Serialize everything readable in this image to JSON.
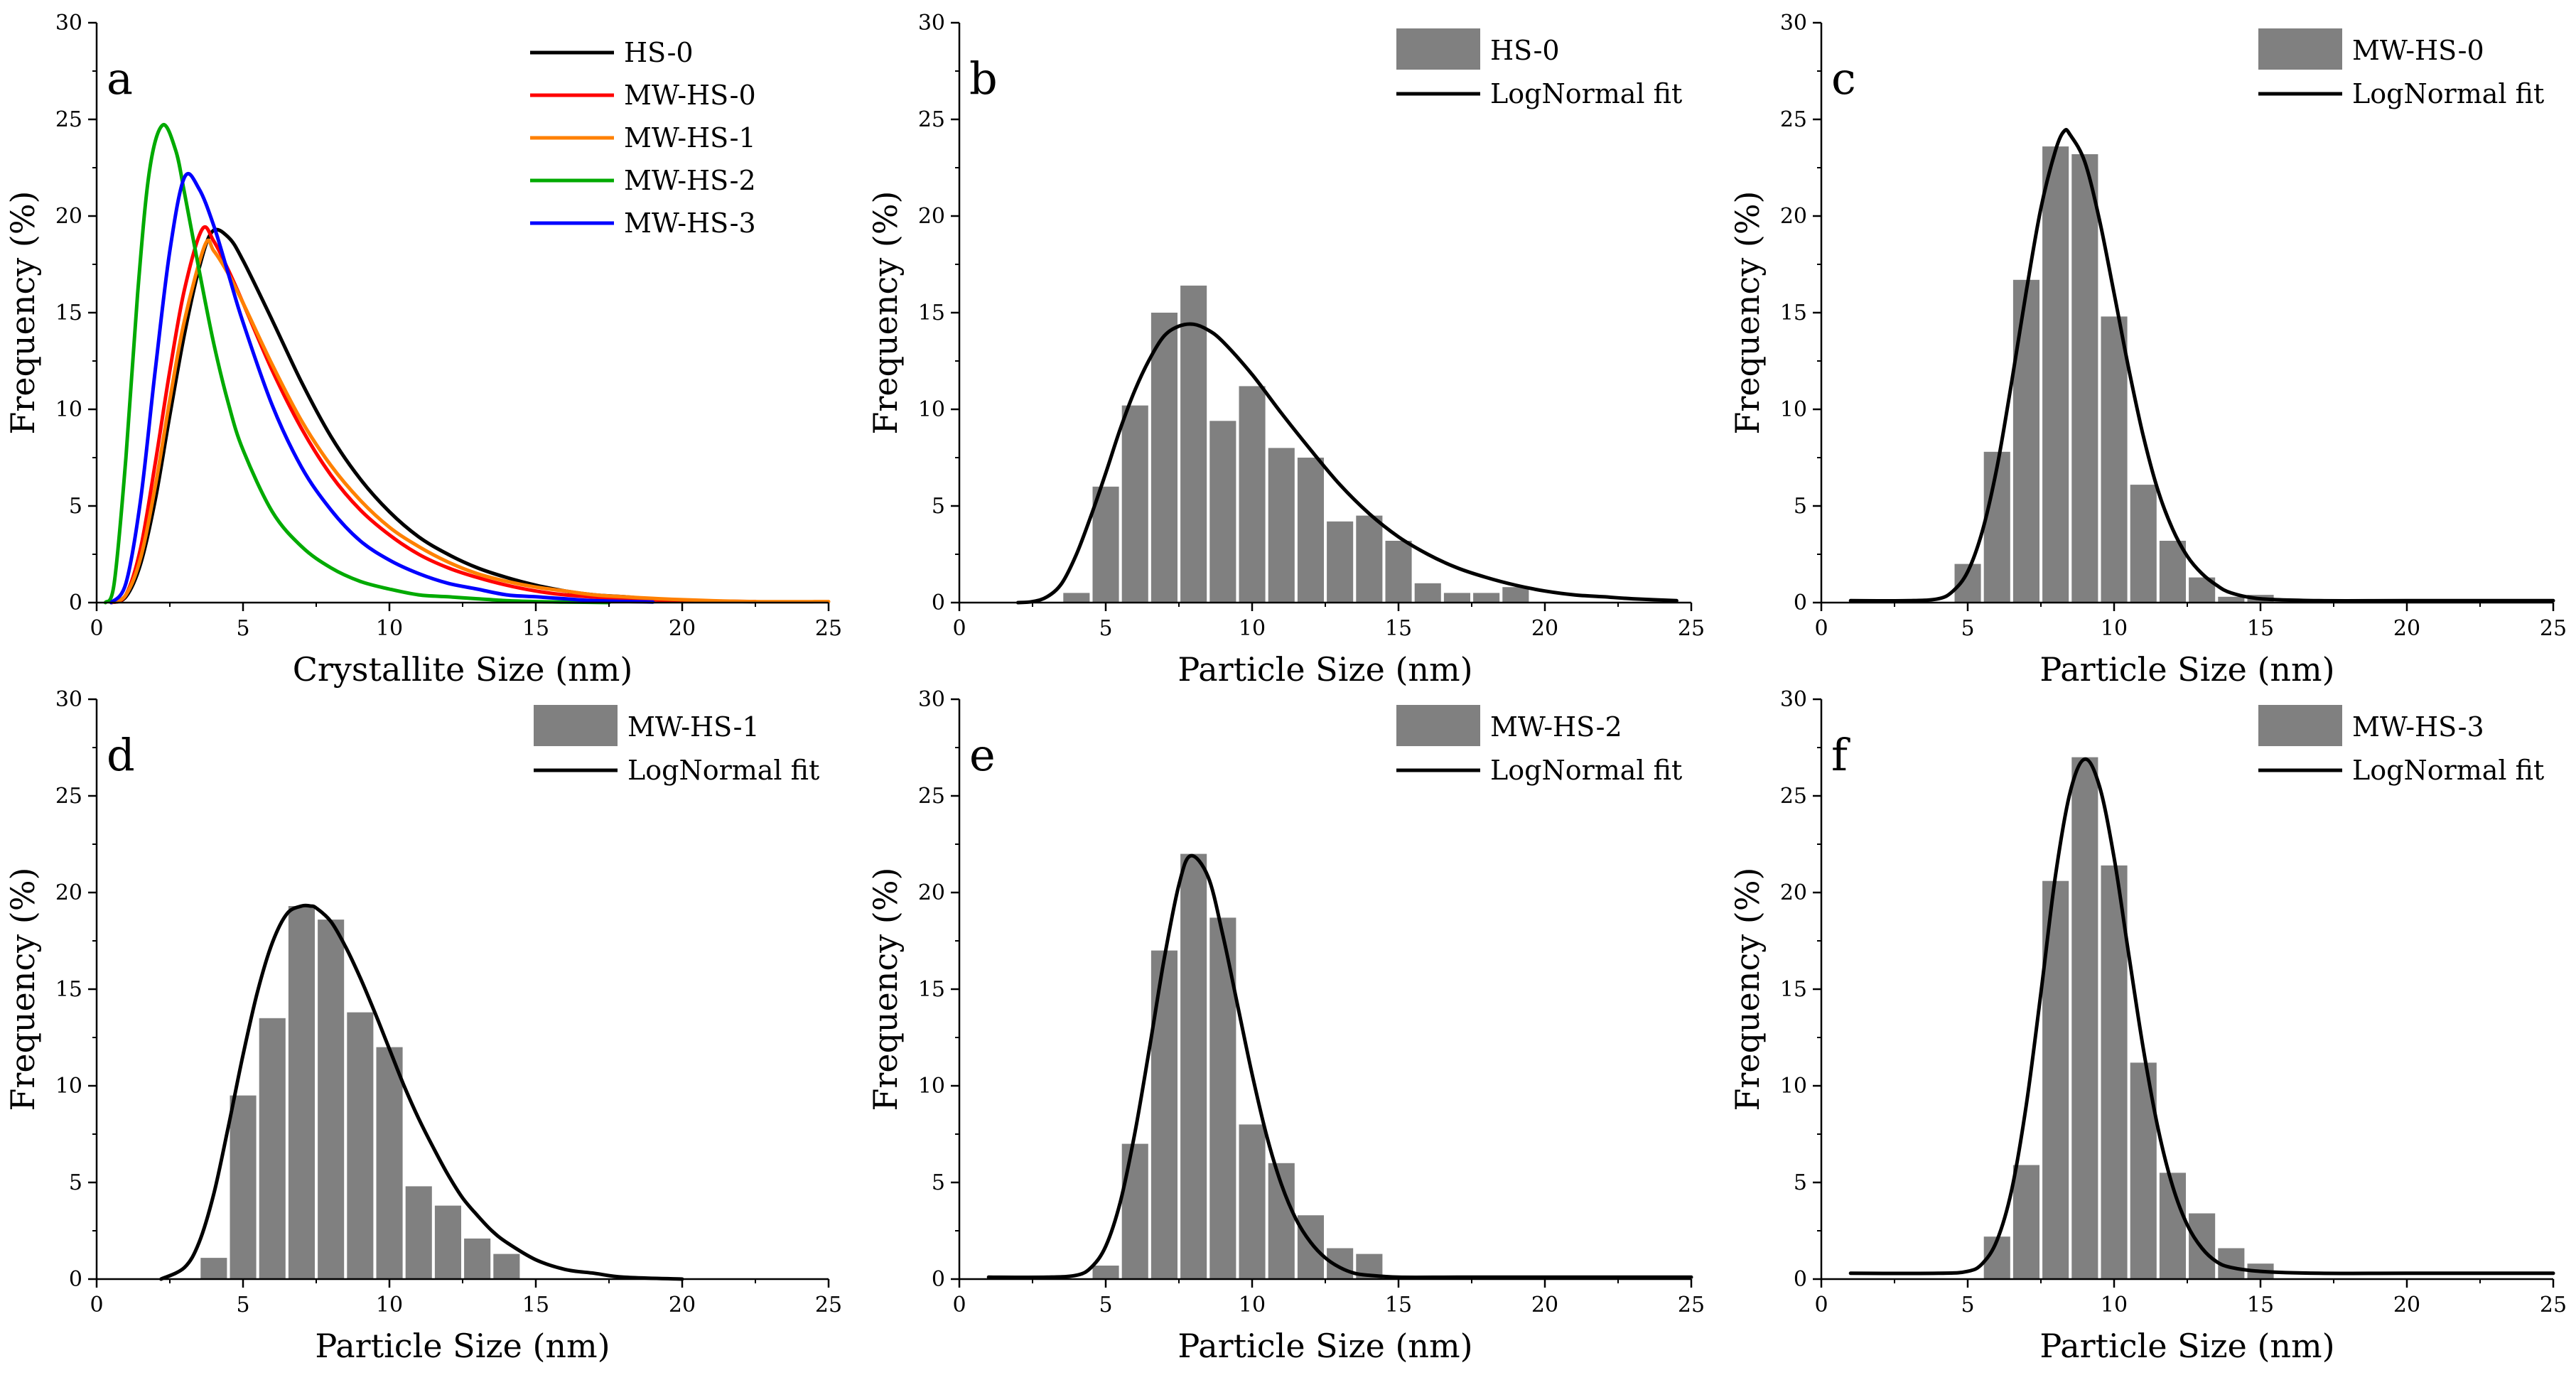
{
  "figure": {
    "panels_order": [
      "a",
      "b",
      "c",
      "d",
      "e",
      "f"
    ]
  },
  "chart_data": [
    {
      "panel": "a",
      "type": "line",
      "xlabel": "Crystallite Size (nm)",
      "ylabel": "Frequency (%)",
      "xlim": [
        0,
        25
      ],
      "ylim": [
        0,
        30
      ],
      "xticks": [
        0,
        5,
        10,
        15,
        20,
        25
      ],
      "yticks": [
        0,
        5,
        10,
        15,
        20,
        25,
        30
      ],
      "legend_position": "top-right",
      "series": [
        {
          "name": "HS-0",
          "color": "#000000",
          "peak_x": 3.95,
          "peak_y": 19.2,
          "x_end": 22.5,
          "x": [
            0.5,
            1,
            1.5,
            2,
            2.5,
            3,
            3.5,
            3.95,
            4.5,
            5,
            6,
            7,
            8,
            9,
            10,
            11,
            12,
            13,
            14,
            15,
            16,
            17,
            18,
            20,
            22.5
          ],
          "y": [
            0,
            0.3,
            2.0,
            5.3,
            9.7,
            13.9,
            17.3,
            19.2,
            18.9,
            17.7,
            14.6,
            11.4,
            8.6,
            6.4,
            4.7,
            3.4,
            2.5,
            1.8,
            1.3,
            0.9,
            0.6,
            0.4,
            0.3,
            0.1,
            0.05
          ]
        },
        {
          "name": "MW-HS-0",
          "color": "#ff0000",
          "peak_x": 3.6,
          "peak_y": 19.3,
          "x_end": 22.5,
          "x": [
            0.5,
            1,
            1.5,
            2,
            2.5,
            3,
            3.6,
            4,
            4.5,
            5,
            6,
            7,
            8,
            9,
            10,
            11,
            12,
            13,
            14,
            15,
            16,
            18,
            20,
            22.5
          ],
          "y": [
            0,
            0.4,
            2.8,
            7.2,
            12.0,
            16.2,
            19.3,
            18.7,
            17.2,
            15.5,
            12.0,
            9.0,
            6.6,
            4.8,
            3.5,
            2.5,
            1.8,
            1.3,
            0.9,
            0.6,
            0.4,
            0.2,
            0.1,
            0.05
          ]
        },
        {
          "name": "MW-HS-1",
          "color": "#ff8000",
          "peak_x": 3.7,
          "peak_y": 18.5,
          "x_end": 25,
          "x": [
            0.5,
            1,
            1.5,
            2,
            2.5,
            3,
            3.7,
            4,
            4.5,
            5,
            6,
            7,
            8,
            9,
            10,
            11,
            12,
            13,
            14,
            15,
            16,
            17,
            18,
            20,
            22.5,
            25
          ],
          "y": [
            0,
            0.4,
            2.3,
            6.0,
            10.5,
            14.6,
            18.5,
            18.2,
            17.0,
            15.5,
            12.3,
            9.4,
            7.1,
            5.3,
            3.9,
            2.9,
            2.1,
            1.5,
            1.1,
            0.8,
            0.6,
            0.4,
            0.3,
            0.15,
            0.05,
            0.05
          ]
        },
        {
          "name": "MW-HS-2",
          "color": "#00aa00",
          "peak_x": 2.25,
          "peak_y": 24.7,
          "x_end": 17.5,
          "x": [
            0.3,
            0.6,
            1,
            1.4,
            1.8,
            2.25,
            2.7,
            3,
            3.5,
            4,
            4.5,
            5,
            6,
            7,
            8,
            9,
            10,
            11,
            12,
            13,
            14,
            15,
            16,
            17.5
          ],
          "y": [
            0,
            1.0,
            7.5,
            16.0,
            22.3,
            24.7,
            23.4,
            21.2,
            17.2,
            13.4,
            10.3,
            7.9,
            4.7,
            2.9,
            1.8,
            1.1,
            0.7,
            0.4,
            0.3,
            0.2,
            0.1,
            0.05,
            0.03,
            0.0
          ]
        },
        {
          "name": "MW-HS-3",
          "color": "#0000ff",
          "peak_x": 3.0,
          "peak_y": 22.0,
          "x_end": 19,
          "x": [
            0.5,
            1,
            1.5,
            2,
            2.5,
            3,
            3.5,
            4,
            4.5,
            5,
            6,
            7,
            8,
            9,
            10,
            11,
            12,
            13,
            14,
            15,
            16,
            17,
            19
          ],
          "y": [
            0,
            1.0,
            5.3,
            12.0,
            18.2,
            22.0,
            21.4,
            19.5,
            17.0,
            14.5,
            10.2,
            7.0,
            4.8,
            3.2,
            2.2,
            1.5,
            1.0,
            0.7,
            0.4,
            0.3,
            0.2,
            0.1,
            0.03
          ]
        }
      ]
    },
    {
      "panel": "b",
      "type": "bar",
      "xlabel": "Particle Size (nm)",
      "ylabel": "Frequency (%)",
      "xlim": [
        0,
        25
      ],
      "ylim": [
        0,
        30
      ],
      "xticks": [
        0,
        5,
        10,
        15,
        20,
        25
      ],
      "yticks": [
        0,
        5,
        10,
        15,
        20,
        25,
        30
      ],
      "legend_position": "top-right",
      "bin_width": 0.9,
      "histogram": {
        "name": "HS-0",
        "color": "#808080",
        "x": [
          4,
          5,
          6,
          7,
          8,
          9,
          10,
          11,
          12,
          13,
          14,
          15,
          16,
          17,
          18,
          19
        ],
        "values": [
          0.5,
          6.0,
          10.2,
          15.0,
          16.4,
          9.4,
          11.2,
          8.0,
          7.5,
          4.2,
          4.5,
          3.2,
          1.0,
          0.5,
          0.5,
          0.8
        ]
      },
      "fit": {
        "name": "LogNormal fit",
        "color": "#000000",
        "x_start": 2.0,
        "x_end": 24.5,
        "x": [
          2,
          2.5,
          3,
          3.5,
          4,
          4.5,
          5,
          5.5,
          6,
          6.5,
          7,
          7.5,
          8,
          8.5,
          9,
          10,
          11,
          12,
          13,
          14,
          15,
          16,
          17,
          18,
          19,
          20,
          21,
          22,
          23,
          24.5
        ],
        "y": [
          0.0,
          0.05,
          0.3,
          1.0,
          2.5,
          4.5,
          6.7,
          9.0,
          11.0,
          12.6,
          13.8,
          14.3,
          14.4,
          14.1,
          13.5,
          11.8,
          9.8,
          7.9,
          6.1,
          4.6,
          3.4,
          2.5,
          1.8,
          1.3,
          0.9,
          0.6,
          0.4,
          0.3,
          0.2,
          0.1
        ]
      }
    },
    {
      "panel": "c",
      "type": "bar",
      "xlabel": "Particle Size (nm)",
      "ylabel": "Frequency (%)",
      "xlim": [
        0,
        25
      ],
      "ylim": [
        0,
        30
      ],
      "xticks": [
        0,
        5,
        10,
        15,
        20,
        25
      ],
      "yticks": [
        0,
        5,
        10,
        15,
        20,
        25,
        30
      ],
      "legend_position": "top-right",
      "bin_width": 0.9,
      "histogram": {
        "name": "MW-HS-0",
        "color": "#808080",
        "x": [
          5,
          6,
          7,
          8,
          9,
          10,
          11,
          12,
          13,
          14,
          15
        ],
        "values": [
          2.0,
          7.8,
          16.7,
          23.6,
          23.2,
          14.8,
          6.1,
          3.2,
          1.3,
          0.3,
          0.4
        ]
      },
      "fit": {
        "name": "LogNormal fit",
        "color": "#000000",
        "x_start": 1.0,
        "x_end": 25,
        "x": [
          1,
          3,
          4,
          4.5,
          5,
          5.5,
          6,
          6.5,
          7,
          7.5,
          8,
          8.3,
          8.5,
          9,
          9.5,
          10,
          10.5,
          11,
          11.5,
          12,
          12.5,
          13,
          13.5,
          14,
          15,
          17,
          20,
          25
        ],
        "y": [
          0.1,
          0.1,
          0.2,
          0.6,
          1.6,
          3.7,
          7.0,
          11.4,
          16.1,
          20.4,
          23.4,
          24.4,
          24.2,
          22.8,
          19.8,
          16.0,
          12.1,
          8.6,
          5.8,
          3.8,
          2.4,
          1.5,
          0.9,
          0.5,
          0.2,
          0.1,
          0.1,
          0.1
        ]
      }
    },
    {
      "panel": "d",
      "type": "bar",
      "xlabel": "Particle Size (nm)",
      "ylabel": "Frequency (%)",
      "xlim": [
        0,
        25
      ],
      "ylim": [
        0,
        30
      ],
      "xticks": [
        0,
        5,
        10,
        15,
        20,
        25
      ],
      "yticks": [
        0,
        5,
        10,
        15,
        20,
        25,
        30
      ],
      "legend_position": "top-right",
      "bin_width": 0.9,
      "histogram": {
        "name": "MW-HS-1",
        "color": "#808080",
        "x": [
          4,
          5,
          6,
          7,
          8,
          9,
          10,
          11,
          12,
          13,
          14
        ],
        "values": [
          1.1,
          9.5,
          13.5,
          19.3,
          18.6,
          13.8,
          12.0,
          4.8,
          3.8,
          2.1,
          1.3
        ]
      },
      "fit": {
        "name": "LogNormal fit",
        "color": "#000000",
        "x_start": 2.2,
        "x_end": 20,
        "x": [
          2.2,
          3,
          3.5,
          4,
          4.5,
          5,
          5.5,
          6,
          6.5,
          7,
          7.3,
          7.5,
          8,
          8.5,
          9,
          9.5,
          10,
          10.5,
          11,
          11.5,
          12,
          12.5,
          13,
          13.5,
          14,
          15,
          16,
          17,
          18,
          20
        ],
        "y": [
          0.0,
          0.6,
          1.9,
          4.4,
          7.9,
          11.6,
          14.9,
          17.4,
          18.9,
          19.3,
          19.3,
          19.2,
          18.5,
          17.2,
          15.6,
          13.8,
          11.9,
          10.0,
          8.3,
          6.8,
          5.4,
          4.2,
          3.3,
          2.5,
          1.9,
          1.0,
          0.5,
          0.3,
          0.1,
          0.0
        ]
      }
    },
    {
      "panel": "e",
      "type": "bar",
      "xlabel": "Particle Size (nm)",
      "ylabel": "Frequency (%)",
      "xlim": [
        0,
        25
      ],
      "ylim": [
        0,
        30
      ],
      "xticks": [
        0,
        5,
        10,
        15,
        20,
        25
      ],
      "yticks": [
        0,
        5,
        10,
        15,
        20,
        25,
        30
      ],
      "legend_position": "top-right",
      "bin_width": 0.9,
      "histogram": {
        "name": "MW-HS-2",
        "color": "#808080",
        "x": [
          5,
          6,
          7,
          8,
          9,
          10,
          11,
          12,
          13,
          14
        ],
        "values": [
          0.7,
          7.0,
          17.0,
          22.0,
          18.7,
          8.0,
          6.0,
          3.3,
          1.6,
          1.3
        ]
      },
      "fit": {
        "name": "LogNormal fit",
        "color": "#000000",
        "x_start": 1.0,
        "x_end": 25,
        "x": [
          1,
          3,
          4,
          4.5,
          5,
          5.5,
          6,
          6.5,
          7,
          7.5,
          7.9,
          8.5,
          9,
          9.5,
          10,
          10.5,
          11,
          11.5,
          12,
          12.5,
          13,
          13.5,
          14,
          15,
          17,
          20,
          25
        ],
        "y": [
          0.1,
          0.1,
          0.2,
          0.6,
          1.7,
          4.0,
          7.6,
          12.0,
          16.6,
          20.4,
          21.9,
          20.8,
          17.8,
          14.2,
          10.6,
          7.4,
          4.9,
          3.1,
          1.9,
          1.1,
          0.6,
          0.3,
          0.2,
          0.1,
          0.1,
          0.1,
          0.1
        ]
      }
    },
    {
      "panel": "f",
      "type": "bar",
      "xlabel": "Particle Size (nm)",
      "ylabel": "Frequency (%)",
      "xlim": [
        0,
        25
      ],
      "ylim": [
        0,
        30
      ],
      "xticks": [
        0,
        5,
        10,
        15,
        20,
        25
      ],
      "yticks": [
        0,
        5,
        10,
        15,
        20,
        25,
        30
      ],
      "legend_position": "top-right",
      "bin_width": 0.9,
      "histogram": {
        "name": "MW-HS-3",
        "color": "#808080",
        "x": [
          6,
          7,
          8,
          9,
          10,
          11,
          12,
          13,
          14,
          15
        ],
        "values": [
          2.2,
          5.9,
          20.6,
          27.0,
          21.4,
          11.2,
          5.5,
          3.4,
          1.6,
          0.8
        ]
      },
      "fit": {
        "name": "LogNormal fit",
        "color": "#000000",
        "x_start": 1.0,
        "x_end": 25,
        "x": [
          1,
          4,
          5,
          5.5,
          6,
          6.5,
          7,
          7.5,
          8,
          8.5,
          9,
          9.5,
          10,
          10.5,
          11,
          11.5,
          12,
          12.5,
          13,
          13.5,
          14,
          15,
          17,
          20,
          25
        ],
        "y": [
          0.3,
          0.3,
          0.4,
          0.8,
          2.0,
          4.6,
          9.0,
          14.8,
          20.9,
          25.2,
          26.9,
          25.5,
          21.8,
          16.8,
          11.9,
          7.8,
          4.8,
          2.8,
          1.6,
          0.9,
          0.6,
          0.4,
          0.3,
          0.3,
          0.3
        ]
      }
    }
  ]
}
